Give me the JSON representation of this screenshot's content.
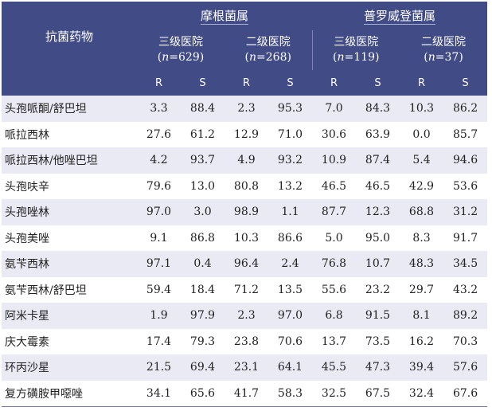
{
  "header": {
    "drug_label": "抗菌药物",
    "groups": [
      {
        "name": "摩根菌属",
        "levels": [
          {
            "label": "三级医院",
            "n": "629"
          },
          {
            "label": "二级医院",
            "n": "268"
          }
        ]
      },
      {
        "name": "普罗威登菌属",
        "levels": [
          {
            "label": "三级医院",
            "n": "119"
          },
          {
            "label": "二级医院",
            "n": "37"
          }
        ]
      }
    ],
    "n_prefix": "n",
    "r_label": "R",
    "s_label": "S"
  },
  "colors": {
    "header_bg": "#414b85",
    "stripe_bg": "#e9eaf3"
  },
  "rows": [
    {
      "drug": "头孢哌酮/舒巴坦",
      "values": [
        "3.3",
        "88.4",
        "2.3",
        "95.3",
        "7.0",
        "84.3",
        "10.3",
        "86.2"
      ]
    },
    {
      "drug": "哌拉西林",
      "values": [
        "27.6",
        "61.2",
        "12.9",
        "71.0",
        "30.6",
        "63.9",
        "0.0",
        "85.7"
      ]
    },
    {
      "drug": "哌拉西林/他唑巴坦",
      "values": [
        "4.2",
        "93.7",
        "4.9",
        "93.2",
        "10.9",
        "87.4",
        "5.4",
        "94.6"
      ]
    },
    {
      "drug": "头孢呋辛",
      "values": [
        "79.6",
        "13.0",
        "80.8",
        "13.2",
        "46.5",
        "46.5",
        "42.9",
        "53.6"
      ]
    },
    {
      "drug": "头孢唑林",
      "values": [
        "97.0",
        "3.0",
        "98.9",
        "1.1",
        "87.7",
        "12.3",
        "68.8",
        "31.2"
      ]
    },
    {
      "drug": "头孢美唑",
      "values": [
        "9.1",
        "86.8",
        "10.3",
        "86.6",
        "5.0",
        "95.0",
        "8.3",
        "91.7"
      ]
    },
    {
      "drug": "氨苄西林",
      "values": [
        "97.1",
        "0.4",
        "96.4",
        "2.4",
        "76.8",
        "10.7",
        "48.3",
        "34.5"
      ]
    },
    {
      "drug": "氨苄西林/舒巴坦",
      "values": [
        "59.4",
        "18.4",
        "71.2",
        "13.5",
        "55.6",
        "23.2",
        "29.7",
        "43.2"
      ]
    },
    {
      "drug": "阿米卡星",
      "values": [
        "1.9",
        "97.9",
        "2.3",
        "97.0",
        "6.8",
        "91.5",
        "8.1",
        "89.2"
      ]
    },
    {
      "drug": "庆大霉素",
      "values": [
        "17.4",
        "79.3",
        "23.8",
        "70.6",
        "13.7",
        "73.5",
        "16.2",
        "70.3"
      ]
    },
    {
      "drug": "环丙沙星",
      "values": [
        "21.5",
        "69.4",
        "23.1",
        "64.1",
        "45.5",
        "47.3",
        "39.4",
        "57.6"
      ]
    },
    {
      "drug": "复方磺胺甲噁唑",
      "values": [
        "34.1",
        "65.6",
        "41.7",
        "58.3",
        "32.5",
        "67.5",
        "32.4",
        "67.6"
      ]
    }
  ]
}
